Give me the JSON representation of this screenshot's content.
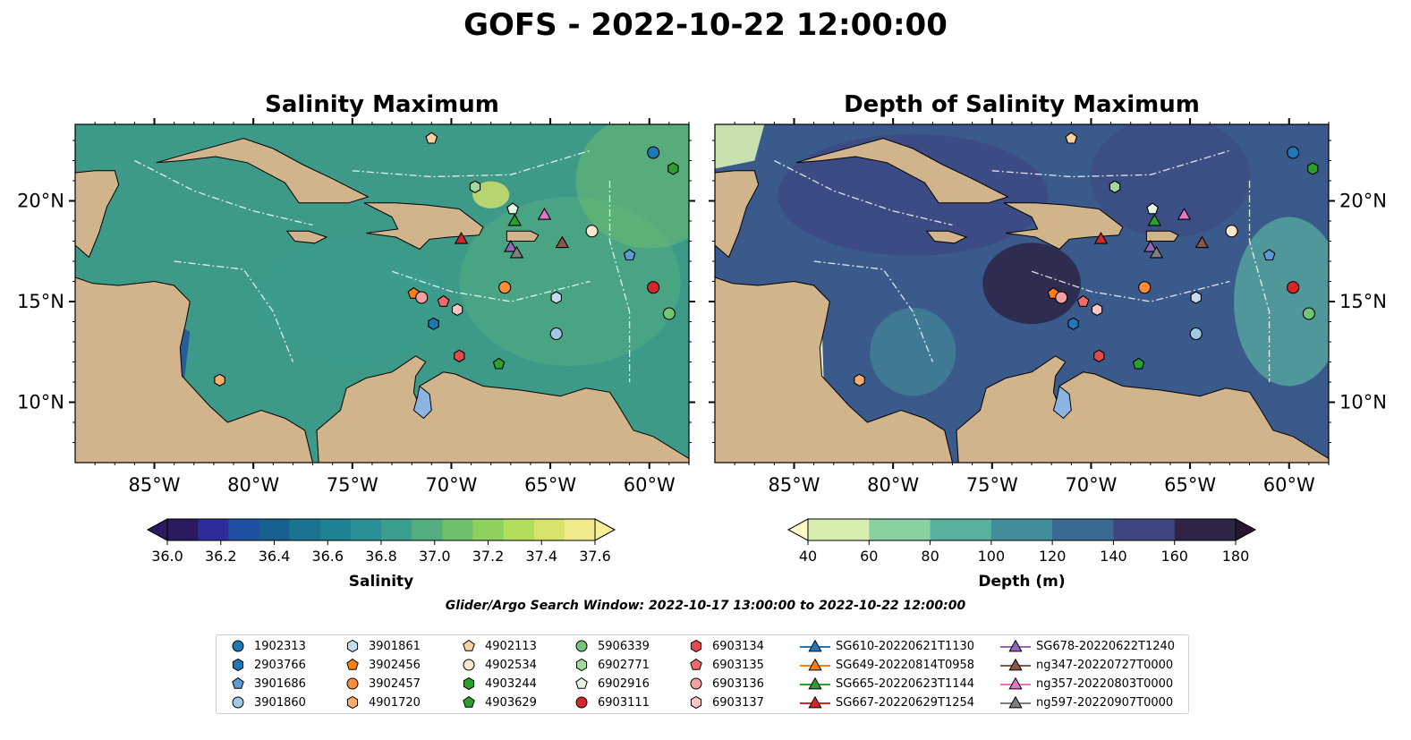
{
  "figure": {
    "suptitle": "GOFS - 2022-10-22 12:00:00",
    "search_window": "Glider/Argo Search Window: 2022-10-17 13:00:00 to 2022-10-22 12:00:00"
  },
  "left_panel": {
    "title": "Salinity Maximum",
    "colorbar": {
      "label": "Salinity",
      "ticks": [
        "36.0",
        "36.2",
        "36.4",
        "36.6",
        "36.8",
        "37.0",
        "37.2",
        "37.4",
        "37.6"
      ],
      "colors": [
        "#2a1a5e",
        "#2c2c9a",
        "#1f4fa0",
        "#18608f",
        "#1a7390",
        "#1f8292",
        "#2a9096",
        "#3a9d8e",
        "#52ad7f",
        "#6fbe6e",
        "#8ed15f",
        "#b2dd5d",
        "#d6e26c",
        "#f2eb8e"
      ],
      "extend_low": "#2b1c62",
      "extend_high": "#f7ee9a"
    },
    "ocean_color": "#3d9a88"
  },
  "right_panel": {
    "title": "Depth of Salinity Maximum",
    "colorbar": {
      "label": "Depth (m)",
      "ticks": [
        "40",
        "60",
        "80",
        "100",
        "120",
        "140",
        "160",
        "180"
      ],
      "colors": [
        "#d6efb1",
        "#8ad1a2",
        "#58b0a0",
        "#428d9a",
        "#3a6a92",
        "#3e4780",
        "#2e2446"
      ],
      "extend_low": "#fbf8c4",
      "extend_high": "#24172e"
    },
    "ocean_color": "#3a5a8c"
  },
  "map_axes": {
    "lon_labels": [
      "85°W",
      "80°W",
      "75°W",
      "70°W",
      "65°W",
      "60°W"
    ],
    "lat_labels": [
      "20°N",
      "15°N",
      "10°N"
    ],
    "land_color": "#d2b48c",
    "lake_color": "#8cb4e0"
  },
  "legend": [
    {
      "label": "1902313",
      "marker": "circle",
      "color": "#1f77b4"
    },
    {
      "label": "2903766",
      "marker": "hexagon",
      "color": "#1f77b4"
    },
    {
      "label": "3901686",
      "marker": "pentagon",
      "color": "#5a9bd5"
    },
    {
      "label": "3901860",
      "marker": "circle",
      "color": "#9ecae1"
    },
    {
      "label": "3901861",
      "marker": "hexagon",
      "color": "#c6dbef"
    },
    {
      "label": "3902456",
      "marker": "pentagon",
      "color": "#ff7f0e"
    },
    {
      "label": "3902457",
      "marker": "circle",
      "color": "#fd8d3c"
    },
    {
      "label": "4901720",
      "marker": "hexagon",
      "color": "#fdae6b"
    },
    {
      "label": "4902113",
      "marker": "pentagon",
      "color": "#fdd0a2"
    },
    {
      "label": "4902534",
      "marker": "circle",
      "color": "#fee6ce"
    },
    {
      "label": "4903244",
      "marker": "hexagon",
      "color": "#2ca02c"
    },
    {
      "label": "4903629",
      "marker": "pentagon",
      "color": "#2ca02c"
    },
    {
      "label": "5906339",
      "marker": "circle",
      "color": "#74c476"
    },
    {
      "label": "6902771",
      "marker": "hexagon",
      "color": "#a1d99b"
    },
    {
      "label": "6902916",
      "marker": "pentagon",
      "color": "#e5f5e0"
    },
    {
      "label": "6903111",
      "marker": "circle",
      "color": "#d62728"
    },
    {
      "label": "6903134",
      "marker": "hexagon",
      "color": "#e34a4a"
    },
    {
      "label": "6903135",
      "marker": "pentagon",
      "color": "#f16b6b"
    },
    {
      "label": "6903136",
      "marker": "circle",
      "color": "#f4a0a0"
    },
    {
      "label": "6903137",
      "marker": "hexagon",
      "color": "#fcc5c5"
    },
    {
      "label": "SG610-20220621T1130",
      "marker": "triangle",
      "color": "#1f77b4"
    },
    {
      "label": "SG649-20220814T0958",
      "marker": "triangle",
      "color": "#ff7f0e"
    },
    {
      "label": "SG665-20220623T1144",
      "marker": "triangle",
      "color": "#2ca02c"
    },
    {
      "label": "SG667-20220629T1254",
      "marker": "triangle",
      "color": "#d62728"
    },
    {
      "label": "SG678-20220622T1240",
      "marker": "triangle",
      "color": "#9467bd"
    },
    {
      "label": "ng347-20220727T0000",
      "marker": "triangle",
      "color": "#8c564b"
    },
    {
      "label": "ng357-20220803T0000",
      "marker": "triangle",
      "color": "#e377c2"
    },
    {
      "label": "ng597-20220907T0000",
      "marker": "triangle",
      "color": "#7f7f7f"
    }
  ],
  "platform_positions": [
    {
      "label": "1902313",
      "lon": -59.8,
      "lat": 22.4,
      "marker": "circle",
      "color": "#1f77b4"
    },
    {
      "label": "2903766",
      "lon": -70.9,
      "lat": 13.9,
      "marker": "hexagon",
      "color": "#1f77b4"
    },
    {
      "label": "3901686",
      "lon": -61.0,
      "lat": 17.3,
      "marker": "pentagon",
      "color": "#5a9bd5"
    },
    {
      "label": "3901860",
      "lon": -64.7,
      "lat": 13.4,
      "marker": "circle",
      "color": "#9ecae1"
    },
    {
      "label": "3901861",
      "lon": -64.7,
      "lat": 15.2,
      "marker": "hexagon",
      "color": "#c6dbef"
    },
    {
      "label": "3902456",
      "lon": -71.9,
      "lat": 15.4,
      "marker": "pentagon",
      "color": "#ff7f0e"
    },
    {
      "label": "3902457",
      "lon": -67.3,
      "lat": 15.7,
      "marker": "circle",
      "color": "#fd8d3c"
    },
    {
      "label": "4901720",
      "lon": -81.7,
      "lat": 11.1,
      "marker": "hexagon",
      "color": "#fdae6b"
    },
    {
      "label": "4902113",
      "lon": -71.0,
      "lat": 23.1,
      "marker": "pentagon",
      "color": "#fdd0a2"
    },
    {
      "label": "4902534",
      "lon": -62.9,
      "lat": 18.5,
      "marker": "circle",
      "color": "#fee6ce"
    },
    {
      "label": "4903244",
      "lon": -58.8,
      "lat": 21.6,
      "marker": "hexagon",
      "color": "#2ca02c"
    },
    {
      "label": "4903629",
      "lon": -67.6,
      "lat": 11.9,
      "marker": "pentagon",
      "color": "#2ca02c"
    },
    {
      "label": "5906339",
      "lon": -59.0,
      "lat": 14.4,
      "marker": "circle",
      "color": "#74c476"
    },
    {
      "label": "6902771",
      "lon": -68.8,
      "lat": 20.7,
      "marker": "hexagon",
      "color": "#a1d99b"
    },
    {
      "label": "6902916",
      "lon": -66.9,
      "lat": 19.6,
      "marker": "pentagon",
      "color": "#e5f5e0"
    },
    {
      "label": "6903111",
      "lon": -59.8,
      "lat": 15.7,
      "marker": "circle",
      "color": "#d62728"
    },
    {
      "label": "6903134",
      "lon": -69.6,
      "lat": 12.3,
      "marker": "hexagon",
      "color": "#e34a4a"
    },
    {
      "label": "6903135",
      "lon": -70.4,
      "lat": 15.0,
      "marker": "pentagon",
      "color": "#f16b6b"
    },
    {
      "label": "6903136",
      "lon": -71.5,
      "lat": 15.2,
      "marker": "circle",
      "color": "#f4a0a0"
    },
    {
      "label": "6903137",
      "lon": -69.7,
      "lat": 14.6,
      "marker": "hexagon",
      "color": "#fcc5c5"
    },
    {
      "label": "SG665-20220623T1144",
      "lon": -66.8,
      "lat": 19.0,
      "marker": "triangle",
      "color": "#2ca02c"
    },
    {
      "label": "SG667-20220629T1254",
      "lon": -69.5,
      "lat": 18.1,
      "marker": "triangle",
      "color": "#d62728"
    },
    {
      "label": "SG678-20220622T1240",
      "lon": -67.0,
      "lat": 17.7,
      "marker": "triangle",
      "color": "#9467bd"
    },
    {
      "label": "ng347-20220727T0000",
      "lon": -64.4,
      "lat": 17.9,
      "marker": "triangle",
      "color": "#8c564b"
    },
    {
      "label": "ng357-20220803T0000",
      "lon": -65.3,
      "lat": 19.3,
      "marker": "triangle",
      "color": "#e377c2"
    },
    {
      "label": "ng597-20220907T0000",
      "lon": -66.7,
      "lat": 17.4,
      "marker": "triangle",
      "color": "#7f7f7f"
    }
  ]
}
